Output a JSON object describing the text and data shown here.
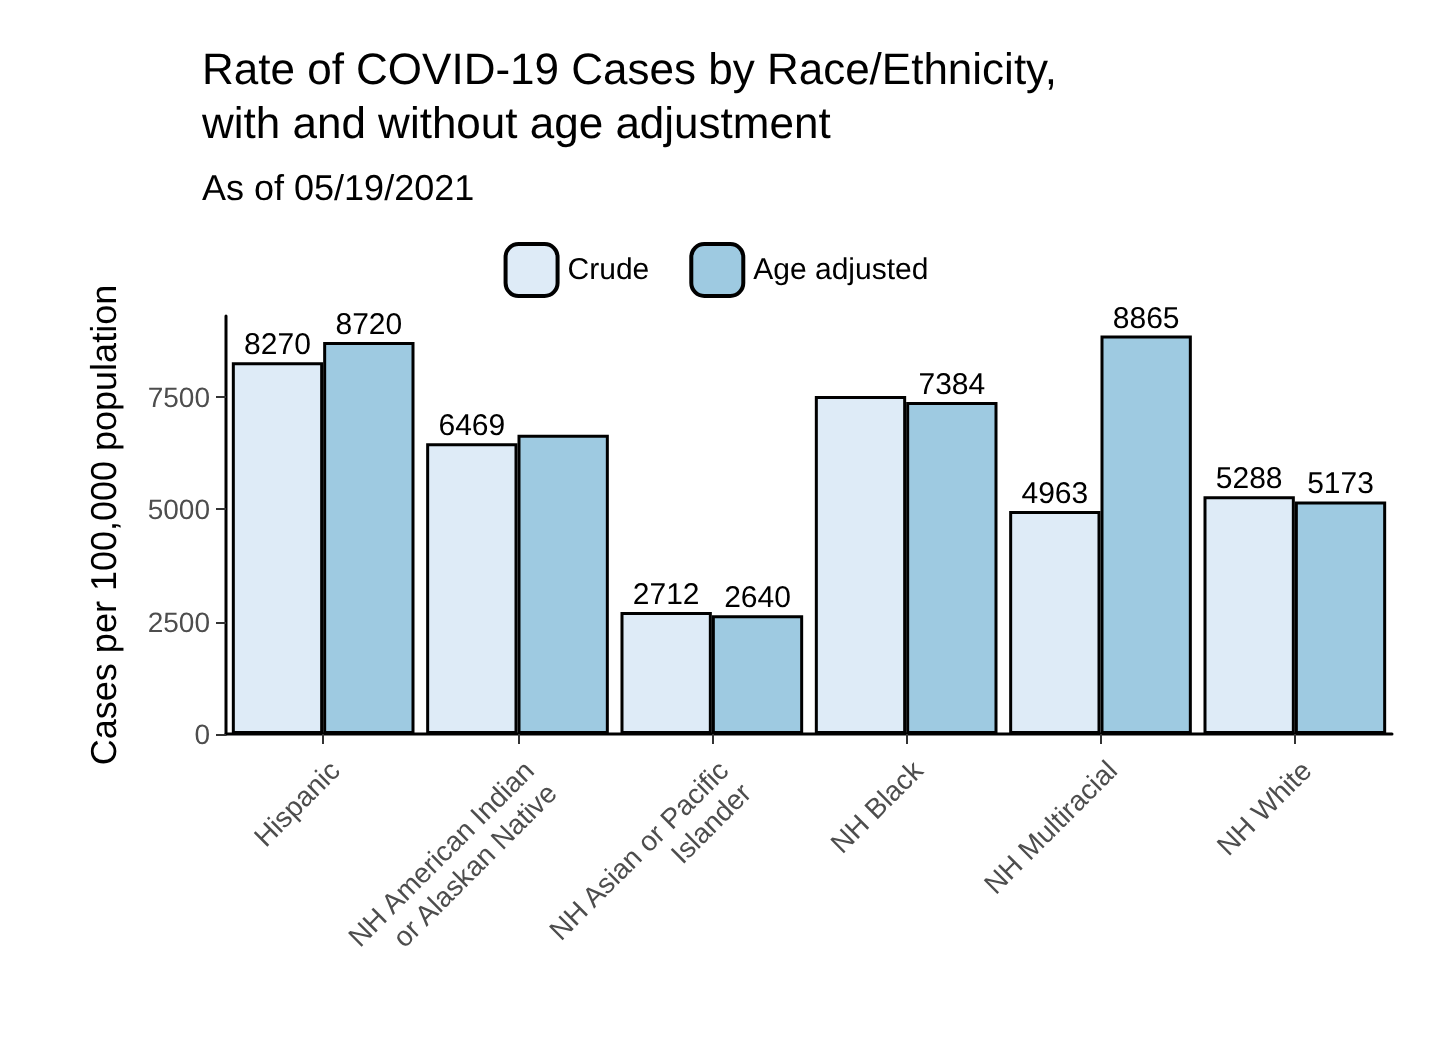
{
  "chart_data": {
    "type": "bar",
    "title": "Rate of COVID-19 Cases by Race/Ethnicity,\nwith and without age adjustment",
    "subtitle": "As of 05/19/2021",
    "ylabel": "Cases per 100,000 population",
    "categories": [
      "Hispanic",
      "NH American Indian\nor Alaskan Native",
      "NH Asian or Pacific\nIslander",
      "NH Black",
      "NH Multiracial",
      "NH White"
    ],
    "series": [
      {
        "name": "Crude",
        "color": "#deebf7",
        "values": [
          8270,
          6469,
          2712,
          7520,
          4963,
          5288
        ],
        "value_labels": [
          "8270",
          "6469",
          "2712",
          null,
          "4963",
          "5288"
        ]
      },
      {
        "name": "Age adjusted",
        "color": "#9ecae1",
        "values": [
          8720,
          6660,
          2640,
          7384,
          8865,
          5173
        ],
        "value_labels": [
          "8720",
          null,
          "2640",
          "7384",
          "8865",
          "5173"
        ]
      }
    ],
    "ylim": [
      0,
      9300
    ],
    "yticks": [
      0,
      2500,
      5000,
      7500
    ],
    "grid": false,
    "legend": "top"
  }
}
